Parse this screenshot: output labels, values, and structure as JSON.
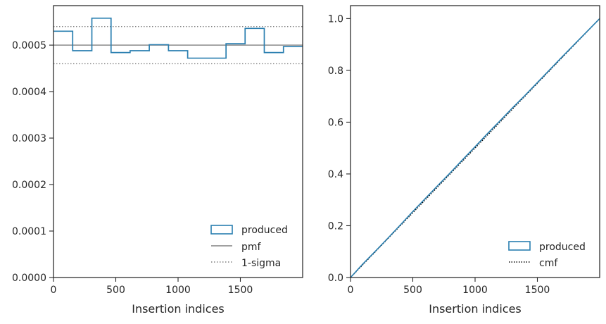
{
  "chart_data": [
    {
      "type": "histogram-step",
      "xlabel": "Insertion indices",
      "ylabel": "",
      "xlim": [
        0,
        2000
      ],
      "ylim": [
        0,
        0.000585
      ],
      "xticks": [
        0,
        500,
        1000,
        1500
      ],
      "xtick_labels": [
        "0",
        "500",
        "1000",
        "1500"
      ],
      "yticks": [
        0,
        0.0001,
        0.0002,
        0.0003,
        0.0004,
        0.0005
      ],
      "ytick_labels": [
        "0.0000",
        "0.0001",
        "0.0002",
        "0.0003",
        "0.0004",
        "0.0005"
      ],
      "bin_edges": [
        0,
        154,
        308,
        462,
        615,
        769,
        923,
        1077,
        1231,
        1385,
        1538,
        1692,
        1846,
        2000
      ],
      "values": [
        0.00053,
        0.000488,
        0.000558,
        0.000484,
        0.000488,
        0.000501,
        0.000488,
        0.000472,
        0.000472,
        0.000503,
        0.000536,
        0.000484,
        0.000497
      ],
      "pmf": 0.0005,
      "sigma_bounds": [
        0.00046,
        0.00054
      ],
      "grid": false,
      "legend_position": "lower-right",
      "legend": [
        "produced",
        "pmf",
        "1-sigma"
      ],
      "colors": {
        "produced": "#2a7fb0",
        "pmf": "#808080",
        "sigma": "#808080"
      }
    },
    {
      "type": "line",
      "xlabel": "Insertion indices",
      "ylabel": "",
      "xlim": [
        0,
        2000
      ],
      "ylim": [
        0,
        1.05
      ],
      "xticks": [
        0,
        500,
        1000,
        1500
      ],
      "xtick_labels": [
        "0",
        "500",
        "1000",
        "1500"
      ],
      "yticks": [
        0,
        0.2,
        0.4,
        0.6,
        0.8,
        1.0
      ],
      "ytick_labels": [
        "0.0",
        "0.2",
        "0.4",
        "0.6",
        "0.8",
        "1.0"
      ],
      "series": [
        {
          "name": "produced",
          "x": [
            0,
            100,
            200,
            300,
            400,
            500,
            600,
            700,
            800,
            900,
            1000,
            1100,
            1200,
            1300,
            1400,
            1500,
            1600,
            1700,
            1800,
            1900,
            2000
          ],
          "y": [
            0,
            0.053,
            0.102,
            0.152,
            0.203,
            0.255,
            0.305,
            0.355,
            0.404,
            0.455,
            0.505,
            0.556,
            0.605,
            0.655,
            0.703,
            0.753,
            0.803,
            0.853,
            0.902,
            0.951,
            1.0
          ]
        },
        {
          "name": "cmf",
          "x": [
            0,
            2000
          ],
          "y": [
            0,
            1.0
          ]
        }
      ],
      "grid": false,
      "legend_position": "lower-right",
      "legend": [
        "produced",
        "cmf"
      ],
      "colors": {
        "produced": "#2a7fb0",
        "cmf": "#000000"
      }
    }
  ]
}
